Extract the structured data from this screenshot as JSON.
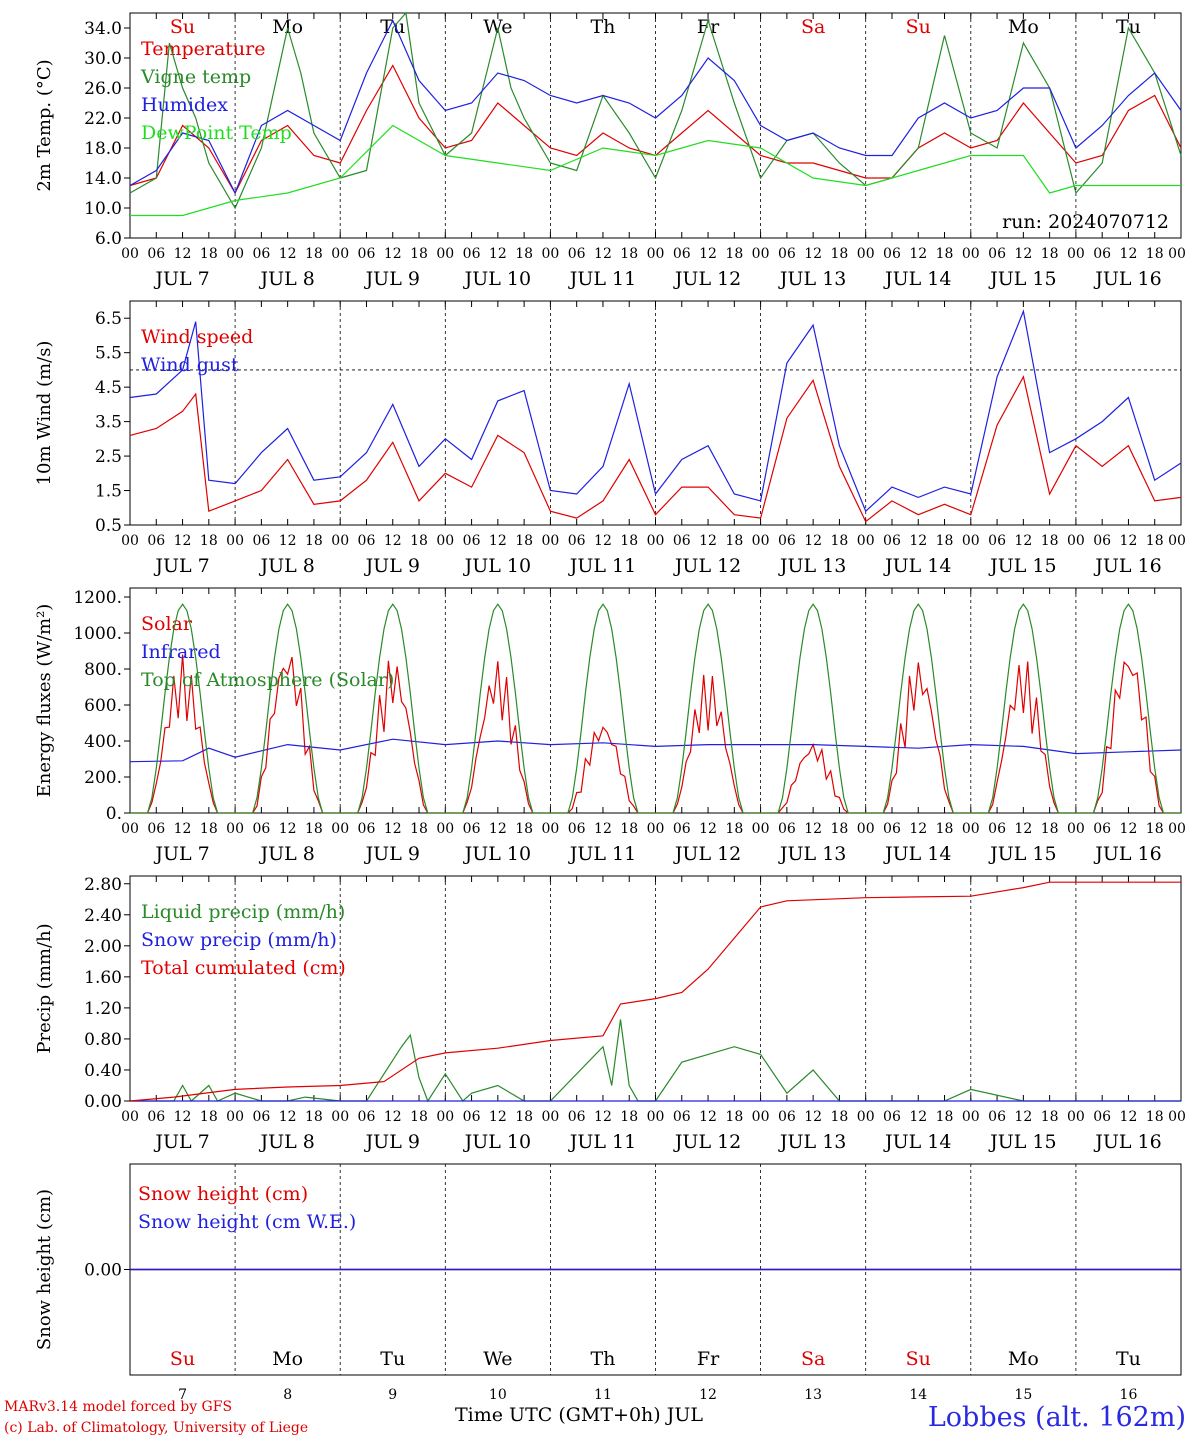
{
  "run_label": "run: 2024070712",
  "footer": {
    "credit_line1": "MARv3.14 model forced by GFS",
    "credit_line2": "(c) Lab. of Climatology, University of Liege",
    "time_axis_label": "Time UTC (GMT+0h) JUL",
    "station": "Lobbes (alt. 162m)"
  },
  "days": {
    "weekdays": [
      "Su",
      "Mo",
      "Tu",
      "We",
      "Th",
      "Fr",
      "Sa",
      "Su",
      "Mo",
      "Tu"
    ],
    "weekend_color": "#e00000",
    "weekday_color": "#000000",
    "dates": [
      "JUL  7",
      "JUL  8",
      "JUL  9",
      "JUL 10",
      "JUL 11",
      "JUL 12",
      "JUL 13",
      "JUL 14",
      "JUL 15",
      "JUL 16"
    ],
    "day_numbers": [
      "7",
      "8",
      "9",
      "10",
      "11",
      "12",
      "13",
      "14",
      "15",
      "16"
    ],
    "hour_ticks": [
      "00",
      "06",
      "12",
      "18"
    ],
    "final_tick": "00"
  },
  "chart_data": [
    {
      "type": "line",
      "ylabel": "2m Temp. (°C)",
      "yticks": [
        "6.0",
        "10.0",
        "14.0",
        "18.0",
        "22.0",
        "26.0",
        "30.0",
        "34.0"
      ],
      "ylim": [
        6,
        36
      ],
      "x_unit": "hours since JUL 7 00 UTC",
      "series": [
        {
          "name": "Temperature",
          "color": "#e00000",
          "x": [
            0,
            6,
            12,
            18,
            24,
            30,
            36,
            42,
            48,
            54,
            60,
            66,
            72,
            78,
            84,
            90,
            96,
            102,
            108,
            114,
            120,
            126,
            132,
            138,
            144,
            150,
            156,
            162,
            168,
            174,
            180,
            186,
            192,
            198,
            204,
            210,
            216,
            222,
            228,
            234,
            240
          ],
          "y": [
            13,
            14,
            21,
            18,
            12,
            19,
            21,
            17,
            16,
            23,
            29,
            22,
            18,
            19,
            24,
            21,
            18,
            17,
            20,
            18,
            17,
            20,
            23,
            20,
            17,
            16,
            16,
            15,
            14,
            14,
            18,
            20,
            18,
            19,
            24,
            20,
            16,
            17,
            23,
            25,
            18
          ]
        },
        {
          "name": "Vigne temp",
          "color": "#2a8a2a",
          "x": [
            0,
            6,
            9,
            12,
            15,
            18,
            24,
            30,
            36,
            39,
            42,
            48,
            54,
            60,
            63,
            66,
            72,
            78,
            84,
            87,
            90,
            96,
            102,
            108,
            114,
            120,
            126,
            132,
            138,
            144,
            150,
            156,
            162,
            168,
            174,
            180,
            186,
            192,
            198,
            204,
            210,
            216,
            222,
            228,
            234,
            240
          ],
          "y": [
            12,
            14,
            32,
            26,
            22,
            16,
            10,
            18,
            34,
            28,
            20,
            14,
            15,
            34,
            36,
            24,
            17,
            20,
            34,
            26,
            22,
            16,
            15,
            25,
            20,
            14,
            23,
            35,
            24,
            14,
            19,
            20,
            16,
            13,
            14,
            18,
            33,
            20,
            18,
            32,
            26,
            12,
            16,
            34,
            28,
            17
          ]
        },
        {
          "name": "Humidex",
          "color": "#2020e0",
          "x": [
            0,
            6,
            12,
            18,
            24,
            30,
            36,
            42,
            48,
            54,
            60,
            66,
            72,
            78,
            84,
            90,
            96,
            102,
            108,
            114,
            120,
            126,
            132,
            138,
            144,
            150,
            156,
            162,
            168,
            174,
            180,
            186,
            192,
            198,
            204,
            210,
            216,
            222,
            228,
            234,
            240
          ],
          "y": [
            13,
            15,
            20,
            19,
            12,
            21,
            23,
            21,
            19,
            28,
            35,
            27,
            23,
            24,
            28,
            27,
            25,
            24,
            25,
            24,
            22,
            25,
            30,
            27,
            21,
            19,
            20,
            18,
            17,
            17,
            22,
            24,
            22,
            23,
            26,
            26,
            18,
            21,
            25,
            28,
            23
          ]
        },
        {
          "name": "DewPoint Temp",
          "color": "#22dd22",
          "x": [
            0,
            12,
            24,
            36,
            48,
            60,
            72,
            84,
            96,
            108,
            120,
            132,
            144,
            156,
            168,
            180,
            192,
            204,
            210,
            216,
            228,
            240
          ],
          "y": [
            9,
            9,
            11,
            12,
            14,
            21,
            17,
            16,
            15,
            18,
            17,
            19,
            18,
            14,
            13,
            15,
            17,
            17,
            12,
            13,
            13,
            13
          ]
        }
      ]
    },
    {
      "type": "line",
      "ylabel": "10m Wind (m/s)",
      "yticks": [
        "0.5",
        "1.5",
        "2.5",
        "3.5",
        "4.5",
        "5.5",
        "6.5"
      ],
      "ylim": [
        0.5,
        7.0
      ],
      "reference_line": 5.0,
      "series": [
        {
          "name": "Wind speed",
          "color": "#e00000",
          "x": [
            0,
            6,
            12,
            15,
            18,
            24,
            30,
            36,
            42,
            48,
            54,
            60,
            66,
            72,
            78,
            84,
            90,
            96,
            102,
            108,
            114,
            120,
            126,
            132,
            138,
            144,
            150,
            156,
            162,
            168,
            174,
            180,
            186,
            192,
            198,
            204,
            210,
            216,
            222,
            228,
            234,
            240
          ],
          "y": [
            3.1,
            3.3,
            3.8,
            4.3,
            0.9,
            1.2,
            1.5,
            2.4,
            1.1,
            1.2,
            1.8,
            2.9,
            1.2,
            2.0,
            1.6,
            3.1,
            2.6,
            0.9,
            0.7,
            1.2,
            2.4,
            0.8,
            1.6,
            1.6,
            0.8,
            0.7,
            3.6,
            4.7,
            2.2,
            0.6,
            1.2,
            0.8,
            1.1,
            0.8,
            3.4,
            4.8,
            1.4,
            2.8,
            2.2,
            2.8,
            1.2,
            1.3
          ]
        },
        {
          "name": "Wind gust",
          "color": "#2020e0",
          "x": [
            0,
            6,
            12,
            15,
            18,
            24,
            30,
            36,
            42,
            48,
            54,
            60,
            66,
            72,
            78,
            84,
            90,
            96,
            102,
            108,
            114,
            120,
            126,
            132,
            138,
            144,
            150,
            156,
            162,
            168,
            174,
            180,
            186,
            192,
            198,
            204,
            210,
            216,
            222,
            228,
            234,
            240
          ],
          "y": [
            4.2,
            4.3,
            5.0,
            6.4,
            1.8,
            1.7,
            2.6,
            3.3,
            1.8,
            1.9,
            2.6,
            4.0,
            2.2,
            3.0,
            2.4,
            4.1,
            4.4,
            1.5,
            1.4,
            2.2,
            4.6,
            1.4,
            2.4,
            2.8,
            1.4,
            1.2,
            5.2,
            6.3,
            2.8,
            0.9,
            1.6,
            1.3,
            1.6,
            1.4,
            4.8,
            6.7,
            2.6,
            3.0,
            3.5,
            4.2,
            1.8,
            2.3
          ]
        }
      ]
    },
    {
      "type": "line",
      "ylabel": "Energy fluxes (W/m²)",
      "yticks": [
        "0.",
        "200.",
        "400.",
        "600.",
        "800.",
        "1000.",
        "1200."
      ],
      "ylim": [
        0,
        1250
      ],
      "series": [
        {
          "name": "Solar",
          "color": "#e00000",
          "peaks": [
            800,
            860,
            800,
            780,
            480,
            720,
            370,
            790,
            790,
            860
          ]
        },
        {
          "name": "Infrared",
          "color": "#2020e0",
          "x": [
            0,
            12,
            18,
            24,
            36,
            48,
            60,
            72,
            84,
            96,
            108,
            120,
            132,
            144,
            156,
            168,
            180,
            192,
            204,
            216,
            228,
            240
          ],
          "y": [
            285,
            290,
            360,
            310,
            380,
            350,
            410,
            380,
            400,
            380,
            390,
            370,
            380,
            380,
            380,
            370,
            360,
            380,
            370,
            330,
            340,
            350
          ]
        },
        {
          "name": "Top of Atmosphere (Solar)",
          "color": "#2a8a2a",
          "peak": 1160
        }
      ]
    },
    {
      "type": "line",
      "ylabel": "Precip (mm/h)",
      "yticks": [
        "0.00",
        "0.40",
        "0.80",
        "1.20",
        "1.60",
        "2.00",
        "2.40",
        "2.80"
      ],
      "ylim": [
        0,
        2.9
      ],
      "series": [
        {
          "name": "Liquid precip (mm/h)",
          "color": "#2a8a2a",
          "x": [
            0,
            10,
            12,
            14,
            18,
            20,
            24,
            30,
            36,
            40,
            48,
            54,
            62,
            64,
            66,
            68,
            72,
            76,
            78,
            84,
            90,
            96,
            108,
            110,
            112,
            114,
            116,
            120,
            126,
            132,
            138,
            144,
            150,
            156,
            162,
            168,
            180,
            186,
            192,
            204,
            210,
            216,
            240
          ],
          "y": [
            0,
            0,
            0.2,
            0,
            0.2,
            0,
            0.1,
            0,
            0,
            0.05,
            0,
            0,
            0.7,
            0.85,
            0.3,
            0,
            0.35,
            0,
            0.1,
            0.2,
            0,
            0,
            0.7,
            0.2,
            1.05,
            0.2,
            0,
            0,
            0.5,
            0.6,
            0.7,
            0.6,
            0.1,
            0.4,
            0,
            0,
            0,
            0,
            0.15,
            0,
            0,
            0,
            0
          ]
        },
        {
          "name": "Snow precip (mm/h)",
          "color": "#2020e0",
          "x": [
            0,
            240
          ],
          "y": [
            0,
            0
          ]
        },
        {
          "name": "Total cumulated (cm)",
          "color": "#e00000",
          "x": [
            0,
            10,
            24,
            36,
            48,
            58,
            66,
            72,
            84,
            96,
            108,
            112,
            120,
            126,
            132,
            138,
            144,
            150,
            168,
            180,
            192,
            204,
            210,
            240
          ],
          "y": [
            0,
            0.05,
            0.15,
            0.18,
            0.2,
            0.25,
            0.55,
            0.62,
            0.68,
            0.78,
            0.84,
            1.25,
            1.32,
            1.4,
            1.7,
            2.1,
            2.5,
            2.58,
            2.62,
            2.63,
            2.64,
            2.75,
            2.82,
            2.82
          ]
        }
      ]
    },
    {
      "type": "line",
      "ylabel": "Snow height (cm)",
      "yticks": [
        "0.00"
      ],
      "ylim": [
        -1,
        1
      ],
      "series": [
        {
          "name": "Snow height (cm)",
          "color": "#e00000",
          "x": [
            0,
            240
          ],
          "y": [
            0,
            0
          ]
        },
        {
          "name": "Snow height (cm W.E.)",
          "color": "#2020e0",
          "x": [
            0,
            240
          ],
          "y": [
            0,
            0
          ]
        }
      ]
    }
  ]
}
